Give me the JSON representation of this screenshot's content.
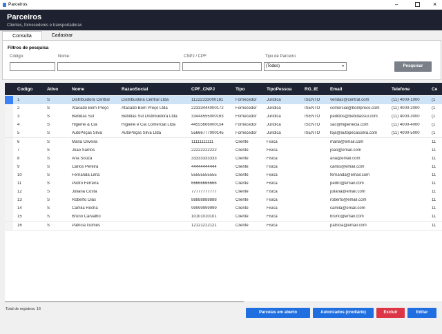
{
  "window": {
    "title": "Parceiros"
  },
  "header": {
    "title": "Parceiros",
    "subtitle": "Clientes, fornecedores e transportadoras"
  },
  "tabs": [
    "Consulta",
    "Cadastrar"
  ],
  "filters": {
    "title": "Filtros de pesquisa",
    "code_label": "Código:",
    "name_label": "Nome:",
    "doc_label": "CNPJ / CPF:",
    "type_label": "Tipo de Parceiro:",
    "type_value": "(Todos)",
    "search_button": "Pesquisar"
  },
  "table": {
    "columns": [
      "Codigo",
      "Ativo",
      "Nome",
      "RazaoSocial",
      "CPF_CNPJ",
      "Tipo",
      "TipoPessoa",
      "RG_IE",
      "Email",
      "Telefone",
      "Ce"
    ],
    "rows": [
      [
        "1",
        "S",
        "Distribuidora Central",
        "Distribuidora Central Ltda",
        "11222333000181",
        "Fornecedor",
        "Juridica",
        "ISENTO",
        "vendas@central.com",
        "(11) 4000-1000",
        "(1"
      ],
      [
        "2",
        "S",
        "Atacado Bom Preço",
        "Atacado Bom Preço Ltda",
        "22333444000172",
        "Fornecedor",
        "Juridica",
        "ISENTO",
        "comercial@bompreco.com",
        "(11) 4000-2000",
        "(1"
      ],
      [
        "3",
        "S",
        "Bebidas Sul",
        "Bebidas Sul Distribuidora Ltda",
        "33444555000163",
        "Fornecedor",
        "Juridica",
        "ISENTO",
        "pedidos@bebidassul.com",
        "(11) 4000-3000",
        "(1"
      ],
      [
        "4",
        "S",
        "Higiene & Cia",
        "Higiene e Cia Comercial Ltda",
        "44555666000154",
        "Fornecedor",
        "Juridica",
        "ISENTO",
        "sac@higienecia.com",
        "(11) 4000-4000",
        "(1"
      ],
      [
        "5",
        "S",
        "AutoPeças Silva",
        "AutoPeças Silva Ltda",
        "55666777000145",
        "Fornecedor",
        "Juridica",
        "ISENTO",
        "loja@autopecassilva.com",
        "(11) 4000-5000",
        "(1"
      ],
      [
        "6",
        "S",
        "Maria Oliveira",
        null,
        "11111111111",
        "Cliente",
        "Fisica",
        null,
        "maria@email.com",
        null,
        "11"
      ],
      [
        "7",
        "S",
        "João Santos",
        null,
        "22222222222",
        "Cliente",
        "Fisica",
        null,
        "joao@email.com",
        null,
        "11"
      ],
      [
        "8",
        "S",
        "Ana Souza",
        null,
        "33333333333",
        "Cliente",
        "Fisica",
        null,
        "ana@email.com",
        null,
        "11"
      ],
      [
        "9",
        "S",
        "Carlos Pereira",
        null,
        "44444444444",
        "Cliente",
        "Fisica",
        null,
        "carlos@email.com",
        null,
        "11"
      ],
      [
        "10",
        "S",
        "Fernanda Lima",
        null,
        "55555555555",
        "Cliente",
        "Fisica",
        null,
        "fernanda@email.com",
        null,
        "11"
      ],
      [
        "11",
        "S",
        "Pedro Ferreira",
        null,
        "66666666666",
        "Cliente",
        "Fisica",
        null,
        "pedro@email.com",
        null,
        "11"
      ],
      [
        "12",
        "S",
        "Juliana Costa",
        null,
        "77777777777",
        "Cliente",
        "Fisica",
        null,
        "juliana@email.com",
        null,
        "11"
      ],
      [
        "13",
        "S",
        "Roberto Dias",
        null,
        "88888888888",
        "Cliente",
        "Fisica",
        null,
        "roberto@email.com",
        null,
        "11"
      ],
      [
        "14",
        "S",
        "Camila Rocha",
        null,
        "99999999999",
        "Cliente",
        "Fisica",
        null,
        "camila@email.com",
        null,
        "11"
      ],
      [
        "15",
        "S",
        "Bruno Carvalho",
        null,
        "10101010101",
        "Cliente",
        "Fisica",
        null,
        "bruno@email.com",
        null,
        "11"
      ],
      [
        "16",
        "S",
        "Patricia Gomes",
        null,
        "12121212121",
        "Cliente",
        "Fisica",
        null,
        "patricia@email.com",
        null,
        "11"
      ]
    ]
  },
  "footer": {
    "total": "Total de registros: 16",
    "buttons": [
      "Parcelas em aberto",
      "Autorizados (crediário)",
      "Excluir",
      "Editar"
    ]
  }
}
